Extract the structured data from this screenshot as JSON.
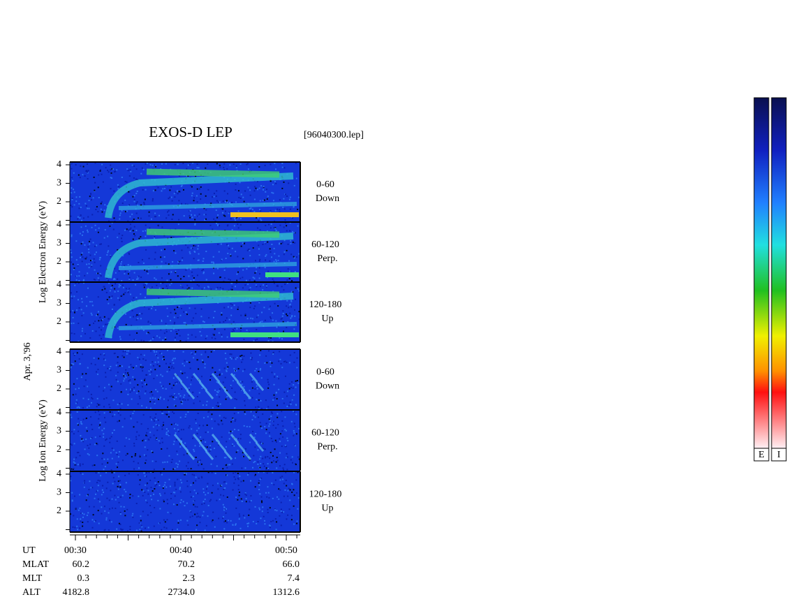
{
  "title": "EXOS-D LEP",
  "file": "[96040300.lep]",
  "date": "Apr. 3,'96",
  "electron": {
    "ylabel": "Log  Electron  Energy  (eV)",
    "panels": [
      {
        "angle": "0-60",
        "direction": "Down"
      },
      {
        "angle": "60-120",
        "direction": "Perp."
      },
      {
        "angle": "120-180",
        "direction": "Up"
      }
    ]
  },
  "ion": {
    "ylabel": "Log  Ion  Energy  (eV)",
    "panels": [
      {
        "angle": "0-60",
        "direction": "Down"
      },
      {
        "angle": "60-120",
        "direction": "Perp."
      },
      {
        "angle": "120-180",
        "direction": "Up"
      }
    ]
  },
  "yticks": [
    "2",
    "3",
    "4"
  ],
  "time_axis": {
    "name": "UT",
    "labels": [
      "00:30",
      "00:40",
      "00:50"
    ]
  },
  "orbit": [
    {
      "name": "MLAT",
      "values": [
        "60.2",
        "70.2",
        "66.0"
      ]
    },
    {
      "name": "MLT",
      "values": [
        "0.3",
        "2.3",
        "7.4"
      ]
    },
    {
      "name": "ALT",
      "values": [
        "4182.8",
        "2734.0",
        "1312.6"
      ]
    }
  ],
  "colorbar": {
    "labels": [
      "E",
      "I"
    ]
  }
}
